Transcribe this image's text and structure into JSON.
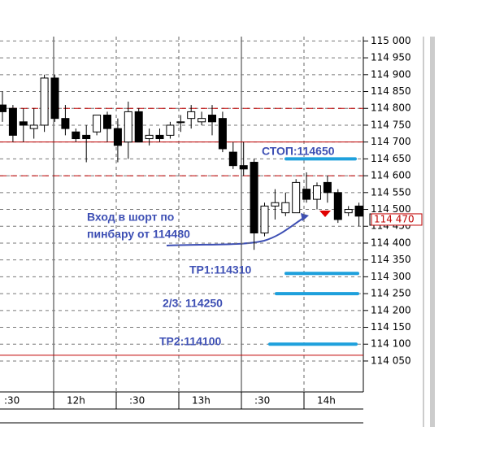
{
  "chart_data": {
    "type": "candlestick",
    "ylim": [
      113963,
      115013
    ],
    "yticks": [
      {
        "value": 114050,
        "label": "114 050"
      },
      {
        "value": 114100,
        "label": "114 100"
      },
      {
        "value": 114150,
        "label": "114 150"
      },
      {
        "value": 114200,
        "label": "114 200"
      },
      {
        "value": 114250,
        "label": "114 250"
      },
      {
        "value": 114300,
        "label": "114 300"
      },
      {
        "value": 114350,
        "label": "114 350"
      },
      {
        "value": 114400,
        "label": "114 400"
      },
      {
        "value": 114450,
        "label": "114 450"
      },
      {
        "value": 114500,
        "label": "114 500"
      },
      {
        "value": 114550,
        "label": "114 550"
      },
      {
        "value": 114600,
        "label": "114 600"
      },
      {
        "value": 114650,
        "label": "114 650"
      },
      {
        "value": 114700,
        "label": "114 700"
      },
      {
        "value": 114750,
        "label": "114 750"
      },
      {
        "value": 114800,
        "label": "114 800"
      },
      {
        "value": 114850,
        "label": "114 850"
      },
      {
        "value": 114900,
        "label": "114 900"
      },
      {
        "value": 114950,
        "label": "114 950"
      },
      {
        "value": 115000,
        "label": "115 000"
      }
    ],
    "time_labels": [
      ":30",
      "12h",
      ":30",
      "13h",
      ":30",
      "14h"
    ],
    "open": [
      114810,
      114800,
      114760,
      114740,
      114750,
      114890,
      114770,
      114730,
      114720,
      114730,
      114780,
      114740,
      114700,
      114790,
      114710,
      114720,
      114720,
      114760,
      114770,
      114760,
      114780,
      114770,
      114670,
      114630,
      114640,
      114430,
      114510,
      114490,
      114490,
      114560,
      114530,
      114580,
      114550,
      114490,
      114510
    ],
    "high": [
      114850,
      114810,
      114800,
      114800,
      114900,
      114900,
      114810,
      114740,
      114750,
      114780,
      114790,
      114770,
      114820,
      114800,
      114740,
      114740,
      114760,
      114780,
      114810,
      114790,
      114810,
      114790,
      114700,
      114700,
      114650,
      114520,
      114560,
      114550,
      114590,
      114610,
      114580,
      114600,
      114560,
      114510,
      114520
    ],
    "low": [
      114760,
      114700,
      114700,
      114710,
      114730,
      114760,
      114720,
      114700,
      114640,
      114720,
      114700,
      114640,
      114650,
      114700,
      114690,
      114700,
      114710,
      114730,
      114740,
      114750,
      114720,
      114670,
      114620,
      114600,
      114380,
      114420,
      114470,
      114480,
      114490,
      114520,
      114500,
      114520,
      114460,
      114480,
      114450
    ],
    "close": [
      114790,
      114720,
      114750,
      114750,
      114890,
      114770,
      114740,
      114710,
      114710,
      114780,
      114740,
      114690,
      114790,
      114700,
      114720,
      114710,
      114750,
      114760,
      114790,
      114770,
      114760,
      114680,
      114630,
      114620,
      114430,
      114510,
      114520,
      114520,
      114580,
      114530,
      114570,
      114550,
      114470,
      114500,
      114480
    ],
    "dashed_levels": [
      114800,
      114600
    ],
    "solid_levels": [
      114700,
      114067
    ],
    "targets": [
      {
        "value": 114650,
        "label": "СТОП:114650"
      },
      {
        "value": 114310,
        "label": "TP1:114310"
      },
      {
        "value": 114250,
        "label": "2/3: 114250"
      },
      {
        "value": 114100,
        "label": "TP2:114100"
      }
    ],
    "entry_note": [
      "Вход в шорт по",
      "пинбару от 114480"
    ],
    "current_price": {
      "value": 114470,
      "label": "114 470"
    }
  }
}
